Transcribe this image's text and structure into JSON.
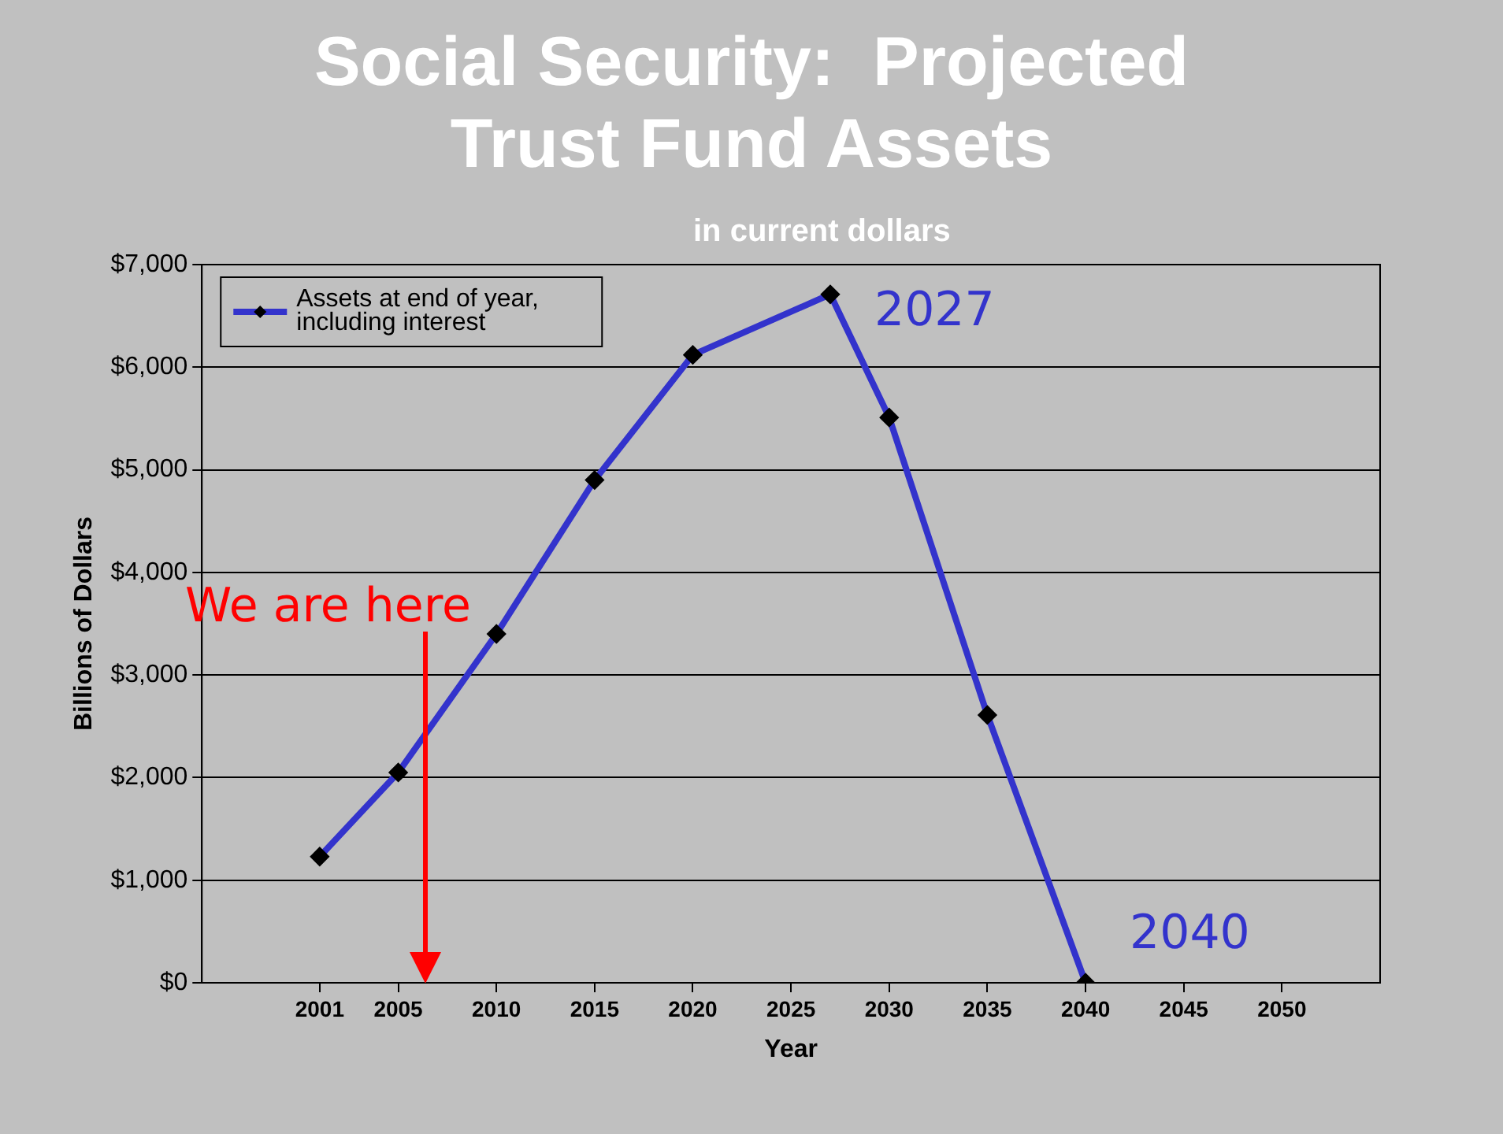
{
  "chart_data": {
    "type": "line",
    "title": "Social Security:  Projected\nTrust Fund Assets",
    "subtitle": "in current dollars",
    "xlabel": "Year",
    "ylabel": "Billions of Dollars",
    "x": [
      2001,
      2005,
      2010,
      2015,
      2020,
      2027,
      2030,
      2035,
      2040
    ],
    "series": [
      {
        "name": "Assets at end of year, including interest",
        "color": "#3333cc",
        "values": [
          1230,
          2050,
          3400,
          4900,
          6120,
          6710,
          5510,
          2610,
          0
        ]
      }
    ],
    "xlim": [
      1995,
      2055
    ],
    "xticks": [
      2001,
      2005,
      2010,
      2015,
      2020,
      2025,
      2030,
      2035,
      2040,
      2045,
      2050
    ],
    "ylim": [
      0,
      7000
    ],
    "yticks": [
      {
        "value": 0,
        "label": "$0"
      },
      {
        "value": 1000,
        "label": "$1,000"
      },
      {
        "value": 2000,
        "label": "$2,000"
      },
      {
        "value": 3000,
        "label": "$3,000"
      },
      {
        "value": 4000,
        "label": "$4,000"
      },
      {
        "value": 5000,
        "label": "$5,000"
      },
      {
        "value": 6000,
        "label": "$6,000"
      },
      {
        "value": 7000,
        "label": "$7,000"
      }
    ],
    "grid": "y",
    "legend": "top left",
    "marker": "diamond",
    "line_style": "solid",
    "annotations": [
      {
        "text": "2027",
        "x": 2027,
        "y": 6710
      },
      {
        "text": "2040",
        "x": 2040,
        "y": 0
      },
      "We are here"
    ]
  }
}
